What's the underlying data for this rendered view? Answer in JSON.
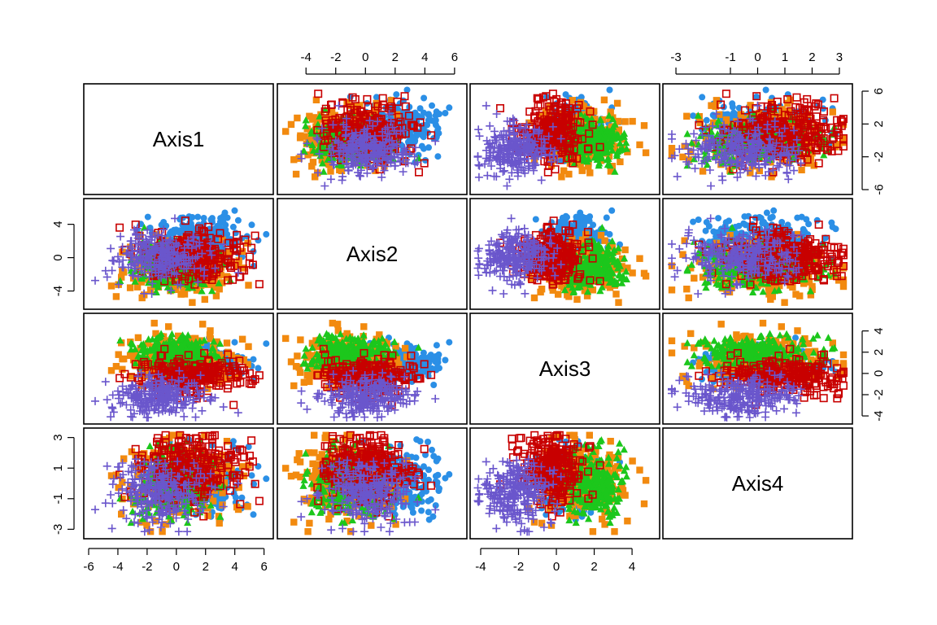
{
  "chart_data": {
    "type": "scatter",
    "variables": [
      "Axis1",
      "Axis2",
      "Axis3",
      "Axis4"
    ],
    "ranges": {
      "Axis1": [
        -6,
        6.3
      ],
      "Axis2": [
        -5.6,
        6.5
      ],
      "Axis3": [
        -4.3,
        5.2
      ],
      "Axis4": [
        -3.3,
        3.3
      ]
    },
    "ticks": {
      "Axis1": [
        -6,
        -4,
        -2,
        0,
        2,
        4,
        6
      ],
      "Axis2": [
        -4,
        -2,
        0,
        2,
        4,
        6
      ],
      "Axis3": [
        -4,
        -2,
        0,
        2,
        4
      ],
      "Axis4": [
        -3,
        -1,
        0,
        1,
        2,
        3
      ]
    },
    "left_ticks": {
      "Axis2": [
        -4,
        0,
        4
      ],
      "Axis4": [
        -3,
        -1,
        1,
        3
      ]
    },
    "right_ticks": {
      "Axis1": [
        -6,
        -2,
        2,
        6
      ],
      "Axis3": [
        -4,
        -2,
        0,
        2,
        4
      ]
    },
    "axes_placement": {
      "top": [
        "Axis2",
        "Axis4"
      ],
      "bottom": [
        "Axis1",
        "Axis3"
      ],
      "left": [
        "Axis2",
        "Axis4"
      ],
      "right": [
        "Axis1",
        "Axis3"
      ]
    },
    "groups": [
      {
        "color": "#2b8fe6",
        "marker": "circle-filled",
        "means": [
          1.5,
          2.0,
          1.0,
          0.1
        ],
        "sd": [
          1.6,
          1.5,
          0.8,
          1.0
        ]
      },
      {
        "color": "#f28a0f",
        "marker": "square-filled",
        "means": [
          0.2,
          -1.5,
          1.2,
          0.3
        ],
        "sd": [
          1.9,
          1.6,
          1.1,
          1.2
        ]
      },
      {
        "color": "#1cc71c",
        "marker": "triangle-filled",
        "means": [
          0.0,
          -1.0,
          2.0,
          -0.3
        ],
        "sd": [
          1.4,
          1.4,
          0.8,
          1.1
        ]
      },
      {
        "color": "#c80000",
        "marker": "square-open",
        "means": [
          1.0,
          0.0,
          -0.2,
          1.0
        ],
        "sd": [
          1.8,
          1.6,
          0.8,
          1.1
        ]
      },
      {
        "color": "#6a56cc",
        "marker": "plus",
        "means": [
          -1.2,
          0.0,
          -2.0,
          -0.6
        ],
        "sd": [
          1.6,
          1.4,
          0.9,
          1.0
        ]
      }
    ],
    "points_per_group": 260,
    "grid": false,
    "legend": "none"
  }
}
